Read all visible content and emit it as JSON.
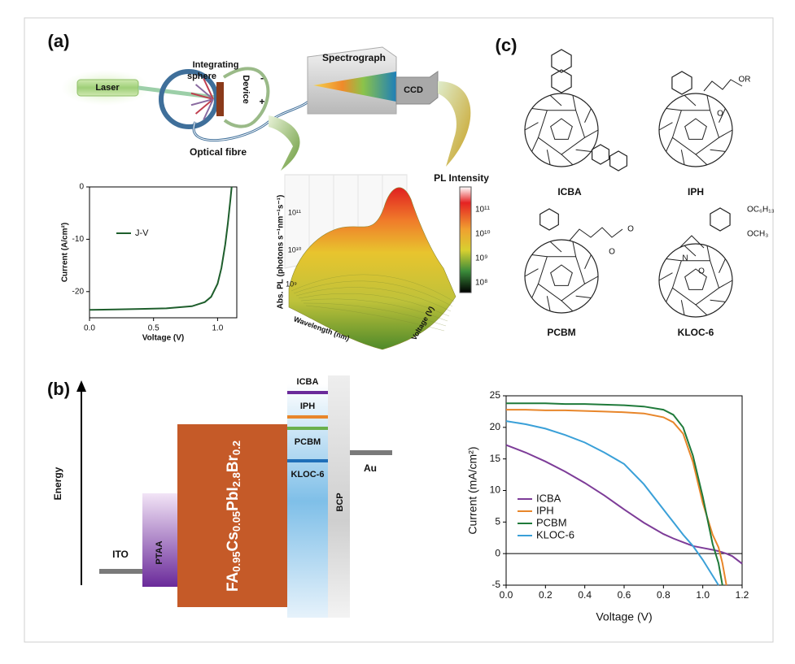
{
  "panel_a": {
    "label": "(a)",
    "setup": {
      "laser": "Laser",
      "sphere_lines": [
        "Integrating",
        "sphere"
      ],
      "device": "Device",
      "minus": "-",
      "plus": "+",
      "spectrograph": "Spectrograph",
      "ccd": "CCD",
      "fibre": "Optical fibre"
    },
    "pl_map": {
      "zlabel": "Abs. PL (photons s⁻¹nm⁻¹s⁻¹)",
      "xlabel": "Wavelength (nm)",
      "ylabel": "Voltage (V)",
      "z_ticks": [
        "10¹¹",
        "10¹⁰",
        "10⁹"
      ],
      "colorbar_title": "PL Intensity",
      "colorbar_ticks": [
        "10¹¹",
        "10¹⁰",
        "10⁹",
        "10⁸"
      ]
    }
  },
  "chart_data": [
    {
      "type": "line",
      "xlabel": "Voltage (V)",
      "ylabel": "Current (A/cm²)",
      "x": [
        0,
        0.2,
        0.4,
        0.6,
        0.8,
        0.9,
        0.95,
        1.0,
        1.03,
        1.06,
        1.08,
        1.1,
        1.11
      ],
      "series": [
        {
          "name": "J-V",
          "color": "#1e5e2c",
          "values": [
            -23.5,
            -23.4,
            -23.3,
            -23.2,
            -22.8,
            -22,
            -21,
            -18.5,
            -15.5,
            -11,
            -7,
            -2.5,
            0
          ]
        }
      ],
      "xlim": [
        0,
        1.15
      ],
      "ylim": [
        -25,
        0
      ],
      "xticks": [
        {
          "value": 0,
          "label": "0.0"
        },
        0.5,
        {
          "value": 1,
          "label": "1.0"
        }
      ],
      "yticks": [
        0,
        -10,
        -20
      ],
      "legend": "upper left"
    },
    {
      "type": "line",
      "xlabel": "Voltage (V)",
      "ylabel": "Current (mA/cm²)",
      "x": [
        0,
        0.1,
        0.2,
        0.3,
        0.4,
        0.5,
        0.6,
        0.7,
        0.8,
        0.85,
        0.9,
        0.95,
        1.0,
        1.05,
        1.08,
        1.1,
        1.12,
        1.15,
        1.2
      ],
      "series": [
        {
          "name": "ICBA",
          "color": "#7d3c98",
          "values": [
            17.2,
            16,
            14.6,
            13,
            11.2,
            9.2,
            7,
            4.9,
            3.1,
            2.4,
            1.8,
            1.2,
            0.9,
            0.6,
            0.4,
            0.2,
            0,
            -0.4,
            -1.6
          ]
        },
        {
          "name": "IPH",
          "color": "#e8862a",
          "values": [
            22.8,
            22.8,
            22.7,
            22.7,
            22.6,
            22.5,
            22.4,
            22.2,
            21.6,
            20.8,
            19,
            14.5,
            8,
            3,
            1,
            -1.5,
            -5,
            null,
            null
          ]
        },
        {
          "name": "PCBM",
          "color": "#1f7a3a",
          "values": [
            23.8,
            23.8,
            23.8,
            23.7,
            23.7,
            23.6,
            23.5,
            23.3,
            22.8,
            22,
            20,
            15.5,
            9,
            1.5,
            -1.5,
            -5,
            null,
            null,
            null
          ]
        },
        {
          "name": "KLOC-6",
          "color": "#3aa0d8",
          "values": [
            21,
            20.5,
            19.8,
            18.8,
            17.6,
            16,
            14.2,
            11,
            7,
            5,
            3,
            1.2,
            -1,
            -3.5,
            -5,
            null,
            null,
            null,
            null
          ]
        }
      ],
      "xlim": [
        0,
        1.2
      ],
      "ylim": [
        -5,
        25
      ],
      "xticks": [
        {
          "value": 0,
          "label": "0.0"
        },
        0.2,
        0.4,
        0.6,
        0.8,
        {
          "value": 1,
          "label": "1.0"
        },
        1.2
      ],
      "yticks": [
        -5,
        0,
        5,
        10,
        15,
        20,
        25
      ],
      "hline": 0,
      "legend": "lower left"
    }
  ],
  "panel_b": {
    "label": "(b)",
    "energy": "Energy",
    "ito": "ITO",
    "ptaa": "PTAA",
    "perovskite": [
      {
        "t": "FA"
      },
      {
        "s": "0.95"
      },
      {
        "t": "Cs"
      },
      {
        "s": "0.05"
      },
      {
        "t": "PbI"
      },
      {
        "s": "2.8"
      },
      {
        "t": "Br"
      },
      {
        "s": "0.2"
      }
    ],
    "levels": [
      "ICBA",
      "IPH",
      "PCBM",
      "KLOC-6"
    ],
    "bcp": "BCP",
    "au": "Au"
  },
  "panel_c": {
    "label": "(c)",
    "molecules": [
      {
        "name": "ICBA",
        "atoms": []
      },
      {
        "name": "IPH",
        "atoms": [
          "O",
          "OR"
        ]
      },
      {
        "name": "PCBM",
        "atoms": [
          "O",
          "O"
        ]
      },
      {
        "name": "KLOC-6",
        "atoms": [
          "OC₆H₁₃",
          "OCH₃",
          "N",
          "O"
        ]
      }
    ]
  }
}
